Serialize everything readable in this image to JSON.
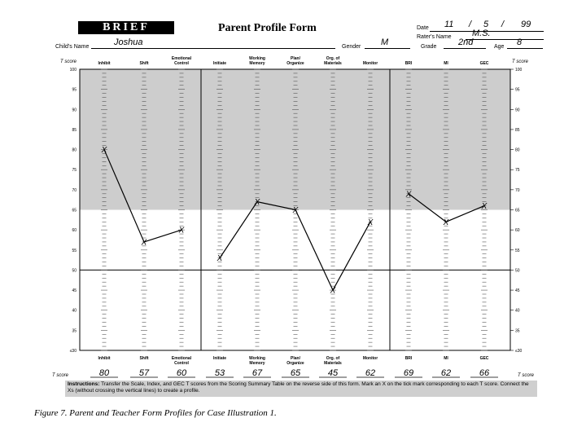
{
  "form": {
    "logo": "BRIEF",
    "title": "Parent Profile Form",
    "date_label": "Date",
    "date_month": "11",
    "date_day": "5",
    "date_year": "99",
    "rater_label": "Rater's Name",
    "rater_name": "M.S.",
    "child_label": "Child's Name",
    "child_name": "Joshua",
    "gender_label": "Gender",
    "gender": "M",
    "grade_label": "Grade",
    "grade": "2nd",
    "age_label": "Age",
    "age": "8"
  },
  "chart_data": {
    "type": "line",
    "ylabel": "T score",
    "ylim": [
      30,
      100
    ],
    "shaded_above": 65,
    "reference_line": 50,
    "yticks": [
      100,
      95,
      90,
      85,
      80,
      75,
      70,
      65,
      60,
      55,
      50,
      45,
      40,
      35,
      30
    ],
    "ytick_labels": [
      "100",
      "95",
      "90",
      "85",
      "80",
      "75",
      "70",
      "65",
      "60",
      "55",
      "50",
      "45",
      "40",
      "35",
      "≤30"
    ],
    "categories": [
      {
        "top": [
          "Inhibit"
        ],
        "bottom": [
          "Inhibit"
        ]
      },
      {
        "top": [
          "Shift"
        ],
        "bottom": [
          "Shift"
        ]
      },
      {
        "top": [
          "Emotional",
          "Control"
        ],
        "bottom": [
          "Emotional",
          "Control"
        ]
      },
      {
        "top": [
          "Initiate"
        ],
        "bottom": [
          "Initiate"
        ]
      },
      {
        "top": [
          "Working",
          "Memory"
        ],
        "bottom": [
          "Working",
          "Memory"
        ]
      },
      {
        "top": [
          "Plan/",
          "Organize"
        ],
        "bottom": [
          "Plan/",
          "Organize"
        ]
      },
      {
        "top": [
          "Org. of",
          "Materials"
        ],
        "bottom": [
          "Org. of",
          "Materials"
        ]
      },
      {
        "top": [
          "Monitor"
        ],
        "bottom": [
          "Monitor"
        ]
      },
      {
        "top": [
          "BRI"
        ],
        "bottom": [
          "BRI"
        ]
      },
      {
        "top": [
          "MI"
        ],
        "bottom": [
          "MI"
        ]
      },
      {
        "top": [
          "GEC"
        ],
        "bottom": [
          "GEC"
        ]
      }
    ],
    "groups": [
      [
        0,
        1,
        2
      ],
      [
        3,
        4,
        5,
        6,
        7
      ],
      [
        8,
        9,
        10
      ]
    ],
    "values": [
      80,
      57,
      60,
      53,
      67,
      65,
      45,
      62,
      69,
      62,
      66
    ],
    "value_labels": [
      "80",
      "57",
      "60",
      "53",
      "67",
      "65",
      "45",
      "62",
      "69",
      "62",
      "66"
    ],
    "marker": "X",
    "tscore_label": "T score"
  },
  "instructions": {
    "heading": "Instructions:",
    "text": "Transfer the Scale, Index, and GEC T scores from the Scoring Summary Table on the reverse side of this form. Mark an X on the tick mark corresponding to each T score. Connect the Xs (without crossing the vertical lines) to create a profile."
  },
  "caption": "Figure 7. Parent and Teacher Form Profiles for Case Illustration 1."
}
